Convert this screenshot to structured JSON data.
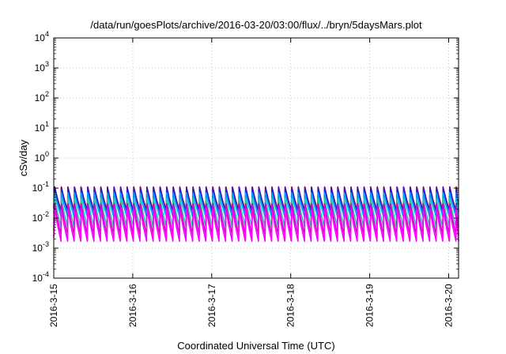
{
  "chart_data": {
    "type": "line",
    "title": "/data/run/goesPlots/archive/2016-03-20/03:00/flux/../bryn/5daysMars.plot",
    "xlabel": "Coordinated Universal Time (UTC)",
    "ylabel": "cSv/day",
    "yscale": "log",
    "ylim": [
      0.0001,
      10000
    ],
    "y_ticks": [
      {
        "base": "10",
        "exp": "-4",
        "value": 0.0001
      },
      {
        "base": "10",
        "exp": "-3",
        "value": 0.001
      },
      {
        "base": "10",
        "exp": "-2",
        "value": 0.01
      },
      {
        "base": "10",
        "exp": "-1",
        "value": 0.1
      },
      {
        "base": "10",
        "exp": "0",
        "value": 1
      },
      {
        "base": "10",
        "exp": "1",
        "value": 10
      },
      {
        "base": "10",
        "exp": "2",
        "value": 100
      },
      {
        "base": "10",
        "exp": "3",
        "value": 1000
      },
      {
        "base": "10",
        "exp": "4",
        "value": 10000
      }
    ],
    "x_ticks": [
      "2016-3-15",
      "2016-3-16",
      "2016-3-17",
      "2016-3-18",
      "2016-3-19",
      "2016-3-20"
    ],
    "xlim": [
      "2016-03-15 00:00",
      "2016-03-20 03:00"
    ],
    "grid": true,
    "orbit_period_hours": 2.0,
    "series": [
      {
        "color": "#ff0000",
        "peak": 0.11,
        "trough": 0.018
      },
      {
        "color": "#1f1fcc",
        "peak": 0.105,
        "trough": 0.016
      },
      {
        "color": "#00a0ff",
        "peak": 0.07,
        "trough": 0.011
      },
      {
        "color": "#2ec4a8",
        "peak": 0.045,
        "trough": 0.005
      },
      {
        "color": "#cc00cc",
        "peak": 0.03,
        "trough": 0.0028
      },
      {
        "color": "#ff00ff",
        "peak": 0.02,
        "trough": 0.0017
      }
    ]
  }
}
